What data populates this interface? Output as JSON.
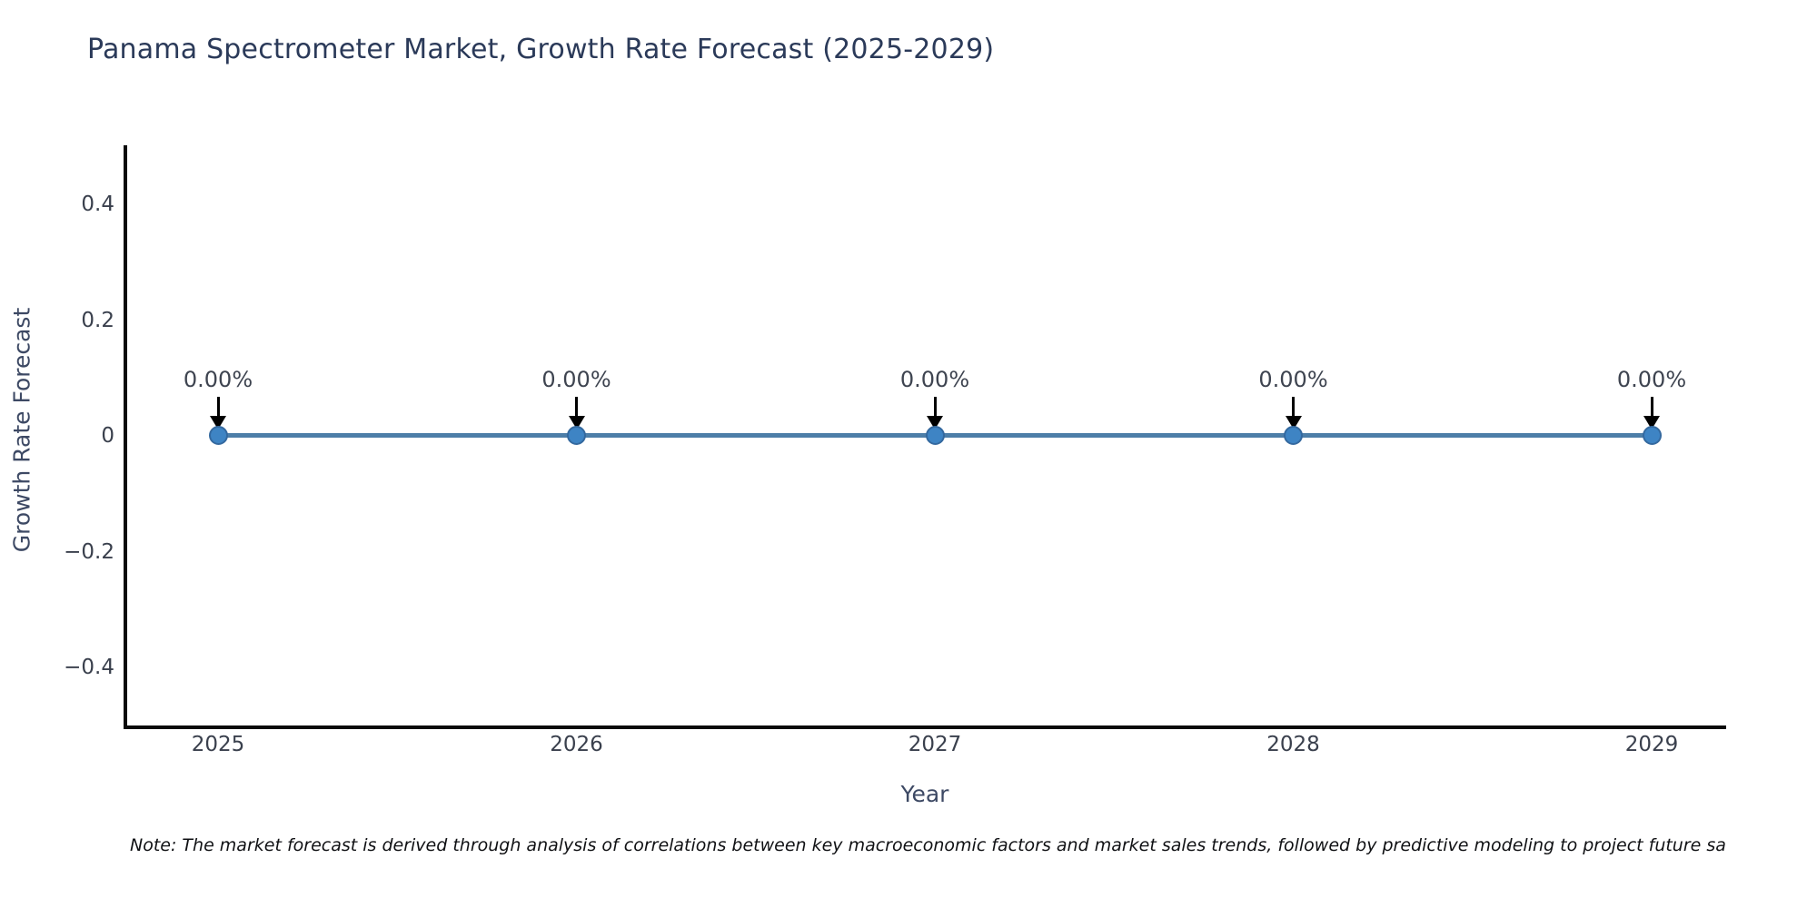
{
  "title": "Panama Spectrometer Market, Growth Rate Forecast (2025-2029)",
  "note": "Note: The market forecast is derived through analysis of correlations between key macroeconomic factors and market sales trends, followed by predictive modeling to project future sa",
  "chart_data": {
    "type": "line",
    "x": [
      "2025",
      "2026",
      "2027",
      "2028",
      "2029"
    ],
    "series": [
      {
        "name": "Growth Rate Forecast",
        "values": [
          0,
          0,
          0,
          0,
          0
        ]
      }
    ],
    "point_labels": [
      "0.00%",
      "0.00%",
      "0.00%",
      "0.00%",
      "0.00%"
    ],
    "title": "Panama Spectrometer Market, Growth Rate Forecast (2025-2029)",
    "xlabel": "Year",
    "ylabel": "Growth Rate Forecast",
    "ylim": [
      -0.5,
      0.5
    ],
    "yticks": [
      0.4,
      0.2,
      0,
      -0.2,
      -0.4
    ],
    "ytick_labels": [
      "0.4",
      "0.2",
      "0",
      "−0.2",
      "−0.4"
    ],
    "grid": false,
    "legend_position": "none",
    "line_color": "#4d7ea8",
    "marker_color": "#3e84c4",
    "annotation_arrow_color": "#000000"
  }
}
